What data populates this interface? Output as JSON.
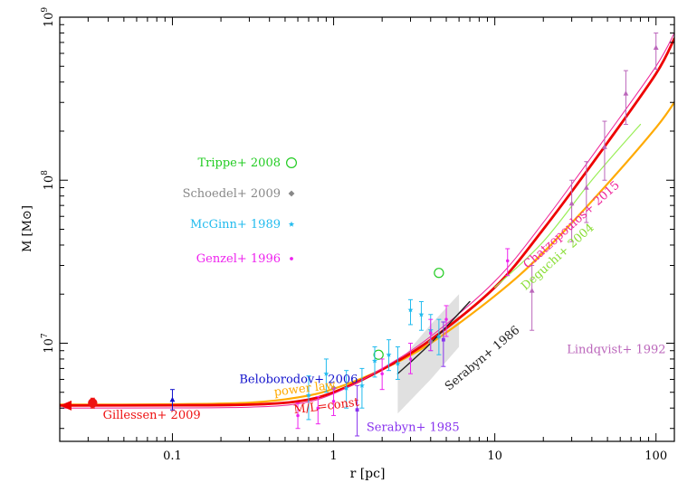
{
  "chart_data": {
    "type": "scatter",
    "title": "",
    "xlabel": "r [pc]",
    "ylabel": "M [M⊙]",
    "xscale": "log",
    "yscale": "log",
    "xlim": [
      0.02,
      130
    ],
    "ylim": [
      2500000,
      1000000000
    ],
    "grid": false,
    "x_ticks": [
      {
        "value": 0.1,
        "label": "0.1"
      },
      {
        "value": 1,
        "label": "1"
      },
      {
        "value": 10,
        "label": "10"
      },
      {
        "value": 100,
        "label": "100"
      }
    ],
    "y_ticks": [
      {
        "value": 10000000,
        "label": "10",
        "exp": "7"
      },
      {
        "value": 100000000,
        "label": "10",
        "exp": "8"
      },
      {
        "value": 1000000000,
        "label": "10",
        "exp": "9"
      }
    ],
    "legend": {
      "placement": "left-center",
      "entries": [
        {
          "label": "Trippe+ 2008",
          "color": "#22cc22",
          "marker": "open-circle"
        },
        {
          "label": "Schoedel+ 2009",
          "color": "#888888",
          "marker": "diamond"
        },
        {
          "label": "McGinn+ 1989",
          "color": "#22bbee",
          "marker": "star"
        },
        {
          "label": "Genzel+ 1996",
          "color": "#ee22ee",
          "marker": "dot"
        }
      ]
    },
    "curves": [
      {
        "name": "power law",
        "color": "#ffaa00",
        "width": 2.2,
        "points": [
          [
            0.02,
            4200000
          ],
          [
            0.1,
            4220000
          ],
          [
            0.3,
            4320000
          ],
          [
            0.6,
            4650000
          ],
          [
            1,
            5250000
          ],
          [
            2,
            6900000
          ],
          [
            4,
            10000000
          ],
          [
            10,
            19500000
          ],
          [
            20,
            36000000
          ],
          [
            50,
            95000000
          ],
          [
            100,
            210000000
          ],
          [
            130,
            300000000
          ]
        ]
      },
      {
        "name": "M/L=const",
        "color": "#ee0000",
        "width": 2.8,
        "points": [
          [
            0.02,
            4150000
          ],
          [
            0.1,
            4160000
          ],
          [
            0.3,
            4200000
          ],
          [
            0.6,
            4400000
          ],
          [
            1,
            5000000
          ],
          [
            2,
            6900000
          ],
          [
            4,
            10500000
          ],
          [
            10,
            22000000
          ],
          [
            20,
            50000000
          ],
          [
            50,
            170000000
          ],
          [
            100,
            450000000
          ],
          [
            130,
            740000000
          ]
        ]
      },
      {
        "name": "Chatzopoulos+ 2015",
        "color": "#ee2299",
        "width": 1,
        "points": [
          [
            0.02,
            4000000
          ],
          [
            0.1,
            4010000
          ],
          [
            0.3,
            4050000
          ],
          [
            0.6,
            4250000
          ],
          [
            1,
            4900000
          ],
          [
            2,
            7000000
          ],
          [
            4,
            11000000
          ],
          [
            10,
            24000000
          ],
          [
            20,
            55000000
          ],
          [
            50,
            190000000
          ],
          [
            100,
            500000000
          ],
          [
            130,
            800000000
          ]
        ]
      },
      {
        "name": "Deguchi+ 2004",
        "color": "#99ee55",
        "width": 1.2,
        "points": [
          [
            10,
            22000000
          ],
          [
            20,
            42000000
          ],
          [
            40,
            100000000
          ],
          [
            80,
            220000000
          ]
        ]
      },
      {
        "name": "Serabyn+ 1986",
        "color": "#222222",
        "width": 1.4,
        "points": [
          [
            2.5,
            6500000
          ],
          [
            4,
            10000000
          ],
          [
            7,
            18000000
          ]
        ]
      }
    ],
    "band": {
      "color": "#dddddd",
      "upper": [
        [
          2.5,
          7500000
        ],
        [
          4,
          13000000
        ],
        [
          6,
          20000000
        ]
      ],
      "lower": [
        [
          2.5,
          3700000
        ],
        [
          4,
          6000000
        ],
        [
          6,
          9500000
        ]
      ]
    },
    "series": [
      {
        "name": "Gillessen+ 2009",
        "color": "#ee1111",
        "marker": "filled-circle",
        "points": [
          {
            "x": 0.032,
            "y": 4300000,
            "lo": 4000000,
            "hi": 4600000
          }
        ]
      },
      {
        "name": "Beloborodov+ 2006",
        "color": "#1111cc",
        "marker": "triangle",
        "points": [
          {
            "x": 0.1,
            "y": 4500000,
            "lo": 3900000,
            "hi": 5200000
          }
        ]
      },
      {
        "name": "Trippe+ 2008",
        "color": "#22cc22",
        "marker": "open-circle",
        "points": [
          {
            "x": 1.9,
            "y": 8500000
          },
          {
            "x": 4.5,
            "y": 27000000
          }
        ]
      },
      {
        "name": "Schoedel+ 2009",
        "color": "#888888",
        "marker": "diamond",
        "points": [
          {
            "x": 1,
            "y": 5300000
          },
          {
            "x": 4,
            "y": 10200000
          }
        ]
      },
      {
        "name": "McGinn+ 1989",
        "color": "#22bbee",
        "marker": "star",
        "points": [
          {
            "x": 0.7,
            "y": 4800000,
            "lo": 3400000,
            "hi": 6300000
          },
          {
            "x": 0.9,
            "y": 6500000,
            "lo": 5000000,
            "hi": 8000000
          },
          {
            "x": 1.2,
            "y": 5300000,
            "lo": 4000000,
            "hi": 6800000
          },
          {
            "x": 1.5,
            "y": 5500000,
            "lo": 4000000,
            "hi": 7000000
          },
          {
            "x": 1.8,
            "y": 7800000,
            "lo": 6200000,
            "hi": 9500000
          },
          {
            "x": 2.2,
            "y": 8500000,
            "lo": 6800000,
            "hi": 10500000
          },
          {
            "x": 2.5,
            "y": 7500000,
            "lo": 6000000,
            "hi": 9500000
          },
          {
            "x": 3,
            "y": 16000000,
            "lo": 13000000,
            "hi": 18500000
          },
          {
            "x": 3.5,
            "y": 15000000,
            "lo": 12000000,
            "hi": 18000000
          },
          {
            "x": 4,
            "y": 12000000,
            "lo": 9000000,
            "hi": 15000000
          },
          {
            "x": 4.5,
            "y": 11000000,
            "lo": 8500000,
            "hi": 14000000
          }
        ]
      },
      {
        "name": "Genzel+ 1996",
        "color": "#ee22ee",
        "marker": "dot",
        "points": [
          {
            "x": 0.6,
            "y": 3600000,
            "lo": 3000000,
            "hi": 4300000
          },
          {
            "x": 0.8,
            "y": 4000000,
            "lo": 3200000,
            "hi": 4700000
          },
          {
            "x": 1,
            "y": 4400000,
            "lo": 3600000,
            "hi": 5300000
          },
          {
            "x": 2,
            "y": 6500000,
            "lo": 5200000,
            "hi": 8000000
          },
          {
            "x": 3,
            "y": 8000000,
            "lo": 6500000,
            "hi": 10000000
          },
          {
            "x": 4,
            "y": 11500000,
            "lo": 9000000,
            "hi": 14000000
          },
          {
            "x": 5,
            "y": 14000000,
            "lo": 11000000,
            "hi": 17000000
          },
          {
            "x": 12,
            "y": 32000000,
            "lo": 26000000,
            "hi": 38000000
          }
        ]
      },
      {
        "name": "Serabyn+ 1985",
        "color": "#8833ee",
        "marker": "square",
        "points": [
          {
            "x": 1.4,
            "y": 3900000,
            "lo": 2700000,
            "hi": 5500000
          },
          {
            "x": 4.8,
            "y": 10500000,
            "lo": 7200000,
            "hi": 13500000
          }
        ]
      },
      {
        "name": "Lindqvist+ 1992",
        "color": "#bb66bb",
        "marker": "triangle",
        "points": [
          {
            "x": 17,
            "y": 21000000,
            "lo": 12000000,
            "hi": 30000000
          },
          {
            "x": 30,
            "y": 72000000,
            "lo": 42000000,
            "hi": 100000000
          },
          {
            "x": 37,
            "y": 90000000,
            "lo": 55000000,
            "hi": 130000000
          },
          {
            "x": 48,
            "y": 160000000,
            "lo": 100000000,
            "hi": 230000000
          },
          {
            "x": 65,
            "y": 340000000,
            "lo": 220000000,
            "hi": 470000000
          },
          {
            "x": 100,
            "y": 650000000,
            "lo": 480000000,
            "hi": 800000000
          }
        ]
      }
    ],
    "annotations": [
      {
        "text": "Gillessen+ 2009",
        "color": "#ee1111",
        "at": [
          0.037,
          3450000
        ],
        "rotate": 0
      },
      {
        "text": "Beloborodov+ 2006",
        "color": "#1111cc",
        "at": [
          0.26,
          5700000
        ],
        "rotate": 0
      },
      {
        "text": "power law",
        "color": "#ffaa00",
        "at": [
          0.43,
          4750000
        ],
        "rotate": -7
      },
      {
        "text": "M/L=const",
        "color": "#ee1111",
        "at": [
          0.57,
          3700000
        ],
        "rotate": -7
      },
      {
        "text": "Serabyn+ 1985",
        "color": "#8833ee",
        "at": [
          1.6,
          2900000
        ],
        "rotate": 0
      },
      {
        "text": "Serabyn+ 1986",
        "color": "#222222",
        "at": [
          5.2,
          5100000
        ],
        "rotate": -40
      },
      {
        "text": "Chatzopoulos+ 2015",
        "color": "#ee2299",
        "at": [
          16,
          28500000
        ],
        "rotate": -42
      },
      {
        "text": "Deguchi+ 2004",
        "color": "#88dd33",
        "at": [
          15.5,
          21000000
        ],
        "rotate": -42
      },
      {
        "text": "Lindqvist+ 1992",
        "color": "#bb66bb",
        "at": [
          28,
          8700000
        ],
        "rotate": 0
      }
    ]
  }
}
